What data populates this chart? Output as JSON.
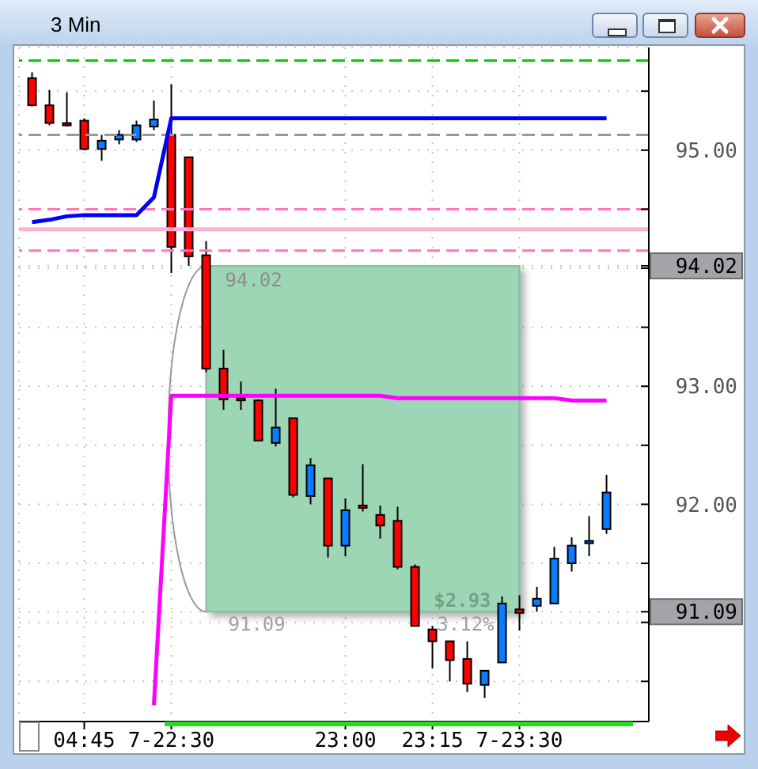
{
  "chart_data": {
    "type": "candlestick",
    "title": "3 Min",
    "categories": [
      null,
      null,
      null,
      "04:45",
      null,
      null,
      null,
      null,
      "7-22:30",
      null,
      null,
      null,
      null,
      null,
      null,
      null,
      null,
      null,
      "23:00",
      null,
      null,
      null,
      null,
      "23:15",
      null,
      null,
      null,
      null,
      "7-23:30",
      null,
      null,
      null,
      null,
      null
    ],
    "ohlc": [
      [
        95.61,
        95.66,
        95.37,
        95.38
      ],
      [
        95.38,
        95.51,
        95.21,
        95.23
      ],
      [
        95.23,
        95.49,
        95.2,
        95.21
      ],
      [
        95.25,
        95.27,
        95.0,
        95.01
      ],
      [
        95.01,
        95.13,
        94.91,
        95.08
      ],
      [
        95.09,
        95.17,
        95.05,
        95.13
      ],
      [
        95.09,
        95.25,
        95.07,
        95.21
      ],
      [
        95.2,
        95.42,
        95.17,
        95.26
      ],
      [
        95.13,
        95.56,
        93.96,
        94.18
      ],
      [
        94.94,
        94.94,
        94.02,
        94.1
      ],
      [
        94.11,
        94.23,
        93.12,
        93.15
      ],
      [
        93.15,
        93.31,
        92.8,
        92.89
      ],
      [
        92.9,
        93.04,
        92.8,
        92.89
      ],
      [
        92.88,
        92.89,
        92.54,
        92.54
      ],
      [
        92.52,
        92.98,
        92.49,
        92.65
      ],
      [
        92.73,
        92.73,
        92.06,
        92.08
      ],
      [
        92.07,
        92.39,
        92.0,
        92.33
      ],
      [
        92.22,
        92.22,
        91.55,
        91.65
      ],
      [
        91.65,
        92.05,
        91.56,
        91.95
      ],
      [
        91.99,
        92.34,
        91.94,
        91.98
      ],
      [
        91.91,
        91.99,
        91.71,
        91.82
      ],
      [
        91.86,
        91.98,
        91.45,
        91.47
      ],
      [
        91.47,
        91.49,
        90.97,
        90.97
      ],
      [
        90.94,
        90.97,
        90.61,
        90.84
      ],
      [
        90.84,
        90.84,
        90.5,
        90.68
      ],
      [
        90.69,
        90.84,
        90.41,
        90.48
      ],
      [
        90.47,
        90.59,
        90.36,
        90.59
      ],
      [
        90.66,
        91.22,
        90.66,
        91.16
      ],
      [
        91.11,
        91.23,
        90.93,
        91.08
      ],
      [
        91.14,
        91.3,
        91.09,
        91.2
      ],
      [
        91.16,
        91.64,
        91.16,
        91.54
      ],
      [
        91.5,
        91.72,
        91.43,
        91.65
      ],
      [
        91.67,
        91.9,
        91.56,
        91.69
      ],
      [
        91.79,
        92.25,
        91.75,
        92.1
      ]
    ],
    "colors": [
      "#ff0000",
      "#ff0000",
      "#ff0000",
      "#ff0000",
      "#0a7cff",
      "#0a7cff",
      "#0a7cff",
      "#0a7cff",
      "#ff0000",
      "#ff0000",
      "#ff0000",
      "#ff0000",
      "#ff0000",
      "#ff0000",
      "#0a7cff",
      "#ff0000",
      "#0a7cff",
      "#ff0000",
      "#0a7cff",
      "#ff0000",
      "#ff0000",
      "#ff0000",
      "#ff0000",
      "#ff0000",
      "#ff0000",
      "#ff0000",
      "#0a7cff",
      "#0a7cff",
      "#ff0000",
      "#0a7cff",
      "#0a7cff",
      "#0a7cff",
      "#0a7cff",
      "#0a7cff"
    ],
    "series": [
      {
        "type": "line",
        "color": "#0000ff",
        "values": [
          94.39,
          94.41,
          94.44,
          94.45,
          94.45,
          94.45,
          94.45,
          94.6,
          95.27,
          95.27,
          95.27,
          95.27,
          95.27,
          95.27,
          95.27,
          95.27,
          95.27,
          95.27,
          95.27,
          95.27,
          95.27,
          95.27,
          95.27,
          95.27,
          95.27,
          95.27,
          95.27,
          95.27,
          95.27,
          95.27,
          95.27,
          95.27,
          95.27,
          95.27
        ]
      },
      {
        "type": "line",
        "color": "#ff00ff",
        "values": [
          null,
          null,
          null,
          null,
          null,
          null,
          null,
          90.3,
          92.92,
          92.92,
          92.92,
          92.92,
          92.92,
          92.92,
          92.92,
          92.92,
          92.92,
          92.92,
          92.92,
          92.92,
          92.92,
          92.9,
          92.9,
          92.9,
          92.9,
          92.9,
          92.9,
          92.9,
          92.9,
          92.9,
          92.9,
          92.88,
          92.88,
          92.88
        ]
      }
    ],
    "ylim": [
      90.16,
      95.87
    ],
    "yticks": [
      {
        "value": 90.5,
        "label": null
      },
      {
        "value": 91,
        "label": null
      },
      91.09,
      {
        "value": 91.5,
        "label": null
      },
      {
        "value": 92,
        "label": "92.00"
      },
      {
        "value": 92.5,
        "label": null
      },
      {
        "value": 93,
        "label": "93.00"
      },
      {
        "value": 93.5,
        "label": null
      },
      {
        "value": 94,
        "label": null
      },
      94.02,
      {
        "value": 94.5,
        "label": null
      },
      {
        "value": 95,
        "label": "95.00"
      },
      {
        "value": 95.5,
        "label": null
      }
    ],
    "grid": true,
    "ref_lines": [
      {
        "axis": "y",
        "value": 95.76,
        "color": "#00cc00",
        "line_style": "dashed"
      },
      {
        "axis": "y",
        "value": 95.13,
        "color": "#999999",
        "line_style": "dashed"
      },
      {
        "axis": "y",
        "value": 94.5,
        "color": "#ff77bb",
        "line_style": "dashed"
      },
      {
        "axis": "y",
        "value": 94.33,
        "color": "#ffb0d4",
        "line_style": "solid"
      },
      {
        "axis": "y",
        "value": 94.15,
        "color": "#ff77bb",
        "line_style": "dashed"
      }
    ],
    "bands": [
      {
        "axis": "y",
        "from": 91.09,
        "to": 94.02,
        "color": "#9cd6b4"
      }
    ],
    "annotations": [
      "94.02",
      "91.09",
      "$2.93",
      "3.12%"
    ]
  }
}
